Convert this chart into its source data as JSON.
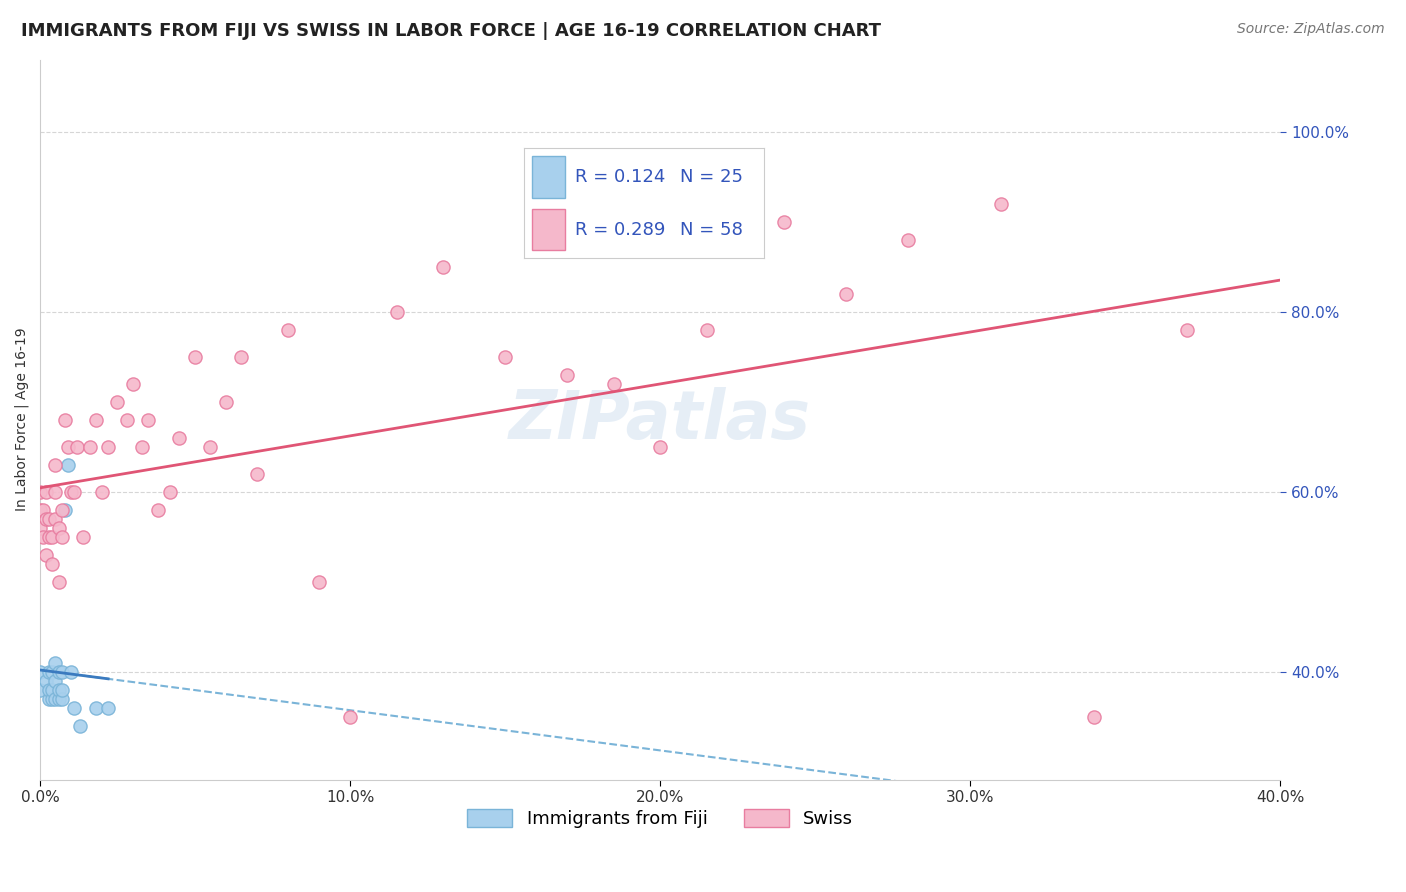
{
  "title": "IMMIGRANTS FROM FIJI VS SWISS IN LABOR FORCE | AGE 16-19 CORRELATION CHART",
  "source": "Source: ZipAtlas.com",
  "xlabel": "",
  "ylabel": "In Labor Force | Age 16-19",
  "xlim": [
    0.0,
    0.4
  ],
  "ylim": [
    0.28,
    1.08
  ],
  "xticks": [
    0.0,
    0.1,
    0.2,
    0.3,
    0.4
  ],
  "xticklabels": [
    "0.0%",
    "10.0%",
    "20.0%",
    "30.0%",
    "40.0%"
  ],
  "yticks": [
    0.4,
    0.6,
    0.8,
    1.0
  ],
  "yticklabels": [
    "40.0%",
    "60.0%",
    "80.0%",
    "100.0%"
  ],
  "fiji_color": "#a8d0ed",
  "swiss_color": "#f5b8cb",
  "fiji_edge": "#7ab4d8",
  "swiss_edge": "#e87da0",
  "trend_fiji_color": "#3a7abf",
  "trend_swiss_color": "#e05575",
  "trend_fiji_dashed_color": "#7ab4d8",
  "legend_r_fiji": "R = 0.124",
  "legend_n_fiji": "N = 25",
  "legend_r_swiss": "R = 0.289",
  "legend_n_swiss": "N = 58",
  "legend_text_color": "#3355bb",
  "watermark": "ZIPatlas",
  "fiji_x": [
    0.0,
    0.0,
    0.002,
    0.003,
    0.003,
    0.003,
    0.004,
    0.004,
    0.004,
    0.005,
    0.005,
    0.005,
    0.006,
    0.006,
    0.006,
    0.007,
    0.007,
    0.007,
    0.008,
    0.009,
    0.01,
    0.011,
    0.013,
    0.018,
    0.022
  ],
  "fiji_y": [
    0.38,
    0.4,
    0.39,
    0.37,
    0.38,
    0.4,
    0.37,
    0.38,
    0.4,
    0.37,
    0.39,
    0.41,
    0.37,
    0.38,
    0.4,
    0.37,
    0.38,
    0.4,
    0.58,
    0.63,
    0.4,
    0.36,
    0.34,
    0.36,
    0.36
  ],
  "swiss_x": [
    0.0,
    0.0,
    0.0,
    0.001,
    0.001,
    0.002,
    0.002,
    0.002,
    0.003,
    0.003,
    0.004,
    0.004,
    0.005,
    0.005,
    0.005,
    0.006,
    0.006,
    0.007,
    0.007,
    0.008,
    0.009,
    0.01,
    0.011,
    0.012,
    0.014,
    0.016,
    0.018,
    0.02,
    0.022,
    0.025,
    0.028,
    0.03,
    0.033,
    0.035,
    0.038,
    0.042,
    0.045,
    0.05,
    0.055,
    0.06,
    0.065,
    0.07,
    0.08,
    0.09,
    0.1,
    0.115,
    0.13,
    0.15,
    0.17,
    0.185,
    0.2,
    0.215,
    0.24,
    0.26,
    0.28,
    0.31,
    0.34,
    0.37
  ],
  "swiss_y": [
    0.58,
    0.6,
    0.56,
    0.55,
    0.58,
    0.57,
    0.53,
    0.6,
    0.55,
    0.57,
    0.52,
    0.55,
    0.57,
    0.6,
    0.63,
    0.5,
    0.56,
    0.55,
    0.58,
    0.68,
    0.65,
    0.6,
    0.6,
    0.65,
    0.55,
    0.65,
    0.68,
    0.6,
    0.65,
    0.7,
    0.68,
    0.72,
    0.65,
    0.68,
    0.58,
    0.6,
    0.66,
    0.75,
    0.65,
    0.7,
    0.75,
    0.62,
    0.78,
    0.5,
    0.35,
    0.8,
    0.85,
    0.75,
    0.73,
    0.72,
    0.65,
    0.78,
    0.9,
    0.82,
    0.88,
    0.92,
    0.35,
    0.78
  ],
  "title_fontsize": 13,
  "axis_fontsize": 10,
  "tick_fontsize": 11,
  "legend_fontsize": 13,
  "source_fontsize": 10,
  "marker_size": 90,
  "background_color": "#ffffff",
  "grid_color": "#cccccc",
  "right_ytick_color": "#3355bb"
}
